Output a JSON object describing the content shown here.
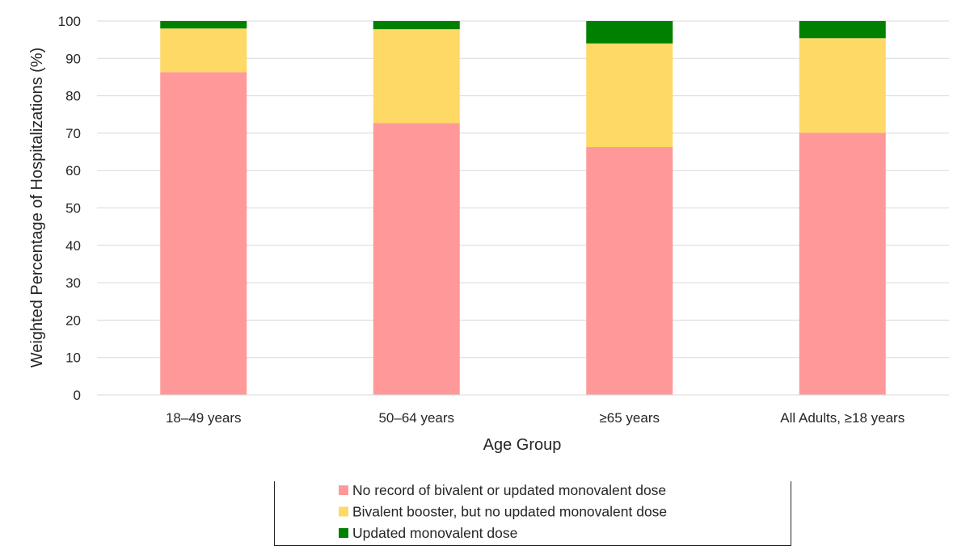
{
  "chart_data": {
    "type": "bar",
    "stacked": true,
    "title": "",
    "xlabel": "Age Group",
    "ylabel": "Weighted Percentage of Hospitalizations (%)",
    "ylim": [
      0,
      100
    ],
    "ytick_step": 10,
    "yticks": [
      "0",
      "10",
      "20",
      "30",
      "40",
      "50",
      "60",
      "70",
      "80",
      "90",
      "100"
    ],
    "grid": true,
    "legend_position": "bottom-center",
    "categories": [
      "18–49 years",
      "50–64 years",
      "≥65 years",
      "All Adults, ≥18 years"
    ],
    "series": [
      {
        "name": "No record of  bivalent or updated monovalent dose",
        "color": "#ff9999",
        "values": [
          86.3,
          72.7,
          66.3,
          70.1
        ]
      },
      {
        "name": "Bivalent booster, but no updated monovalent dose",
        "color": "#ffd966",
        "values": [
          11.7,
          25.1,
          27.7,
          25.3
        ]
      },
      {
        "name": "Updated monovalent dose",
        "color": "#008000",
        "values": [
          2.0,
          2.2,
          6.0,
          4.6
        ]
      }
    ]
  }
}
